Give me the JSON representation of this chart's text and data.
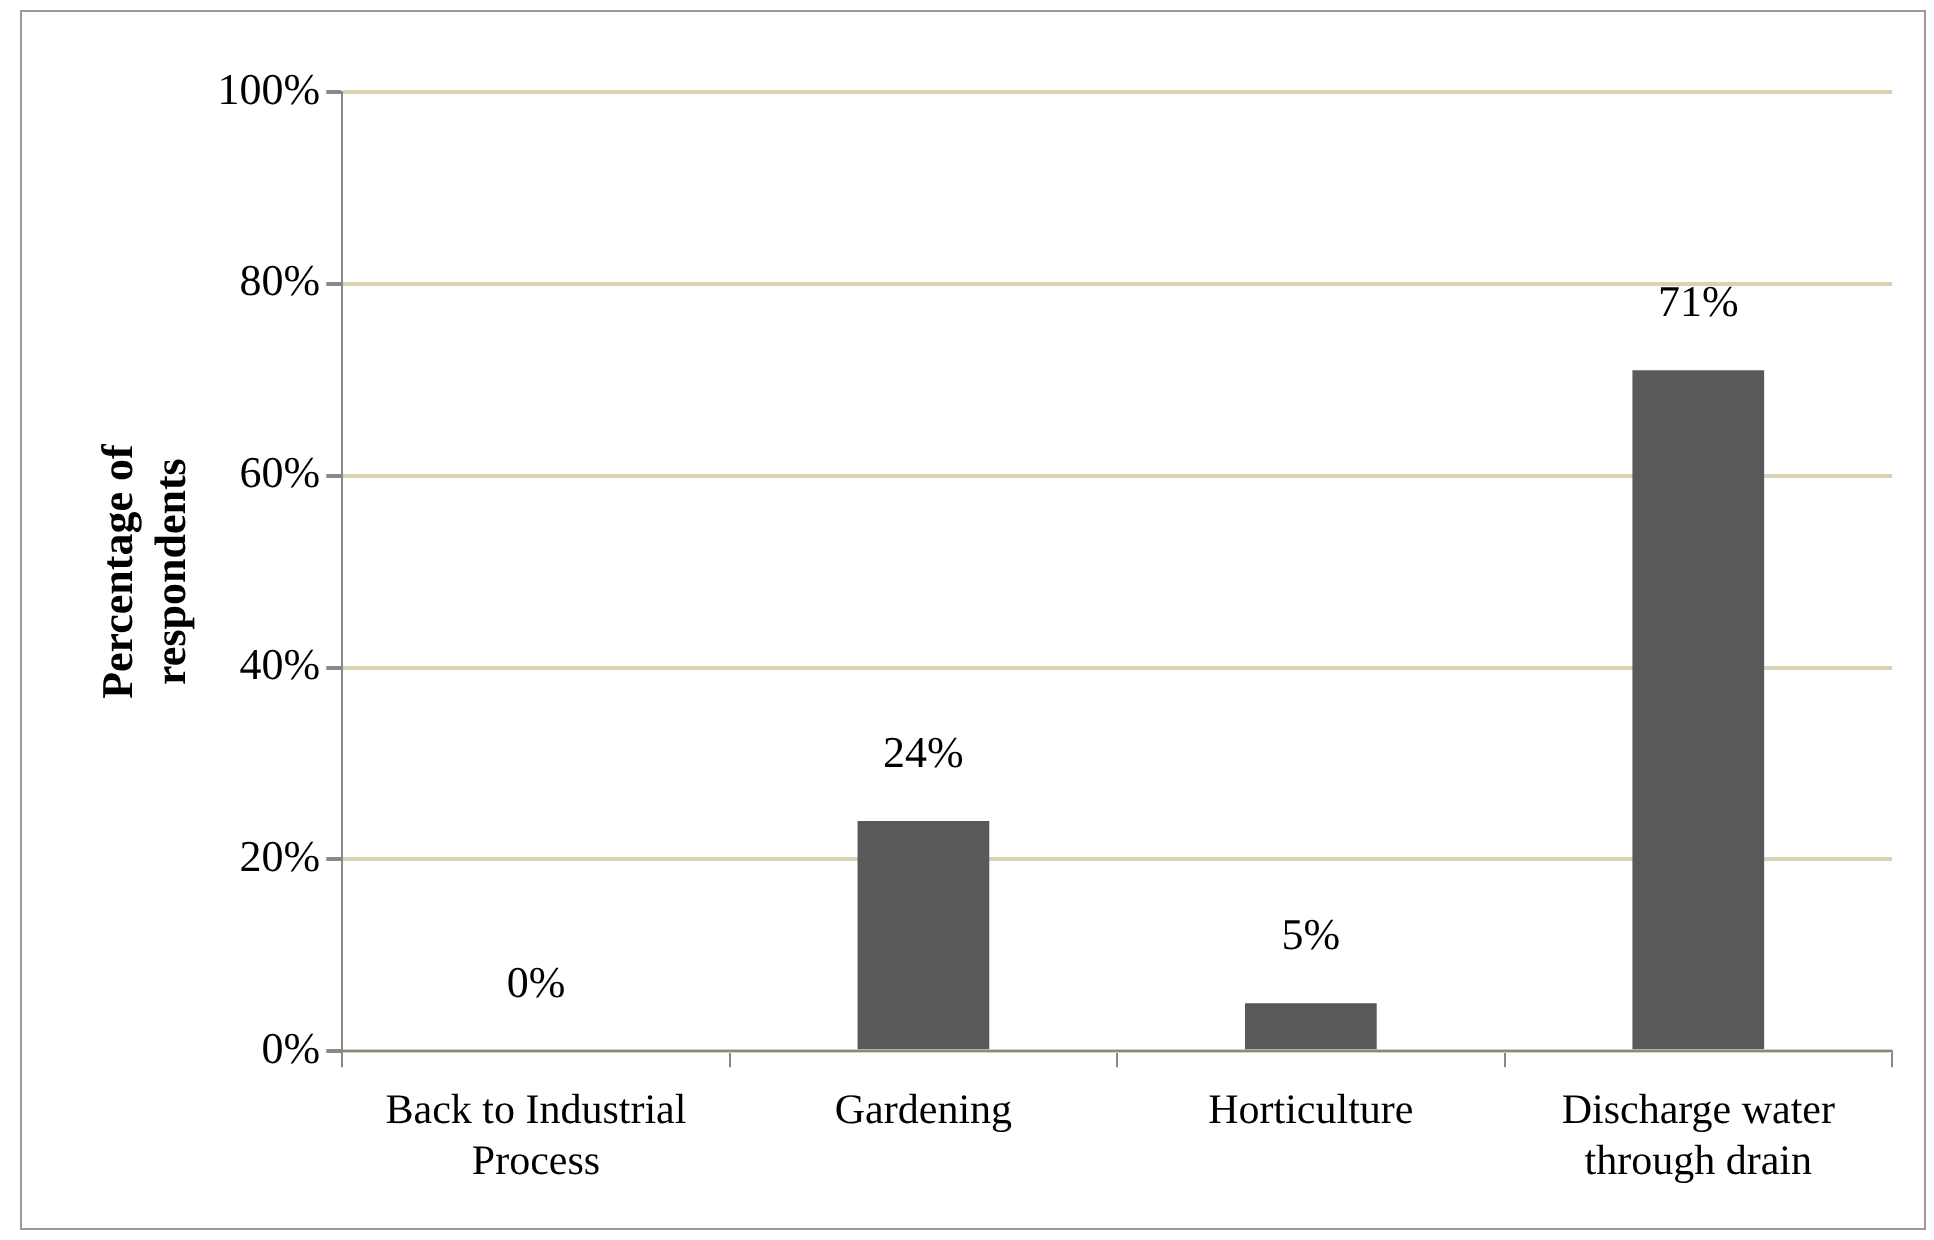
{
  "chart_data": {
    "type": "bar",
    "ylabel": "Percentage of respondents",
    "categories": [
      "Back to Industrial Process",
      "Gardening",
      "Horticulture",
      "Discharge water through drain"
    ],
    "values": [
      0,
      24,
      5,
      71
    ],
    "color": "#595959",
    "value_labels": [
      "0%",
      "24%",
      "5%",
      "71%"
    ],
    "ylim": [
      0,
      100
    ],
    "yticks": [
      {
        "value": 0,
        "label": "0%"
      },
      {
        "value": 20,
        "label": "20%"
      },
      {
        "value": 40,
        "label": "40%"
      },
      {
        "value": 60,
        "label": "60%"
      },
      {
        "value": 80,
        "label": "80%"
      },
      {
        "value": 100,
        "label": "100%"
      }
    ],
    "grid": "y",
    "legend": false
  }
}
